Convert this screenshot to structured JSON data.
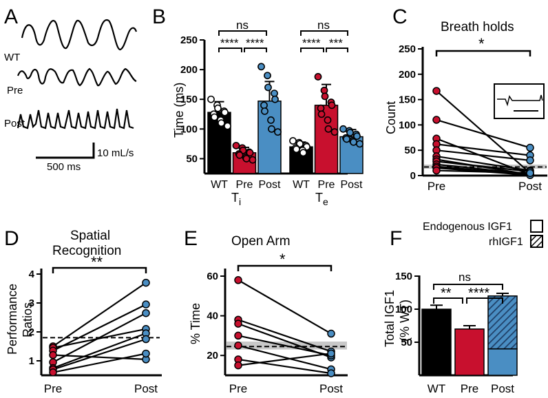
{
  "colors": {
    "wt": "#000000",
    "pre": "#c8102e",
    "post": "#4a8ec3",
    "band": "#c8c8c8",
    "error": "#000000"
  },
  "panelA": {
    "letter": "A",
    "trace_labels": [
      "WT",
      "Pre",
      "Post"
    ],
    "scale_time": "500 ms",
    "scale_flow": "10 mL/s"
  },
  "panelB": {
    "letter": "B",
    "sig_ti": [
      "ns",
      "****",
      "****"
    ],
    "sig_te": [
      "ns",
      "****",
      "***"
    ],
    "chart_data": {
      "type": "bar",
      "ylabel": "Time (ms)",
      "ylim": [
        25,
        250
      ],
      "yticks": [
        50,
        100,
        150,
        200,
        250
      ],
      "groups": [
        "Ti",
        "Te"
      ],
      "categories": [
        "WT",
        "Pre",
        "Post"
      ],
      "series": [
        {
          "group": "Ti",
          "values": [
            128,
            60,
            147
          ],
          "errors": [
            18,
            9,
            33
          ],
          "points": [
            [
              150,
              140,
              135,
              130,
              128,
              125,
              120,
              115,
              110,
              105
            ],
            [
              72,
              68,
              64,
              61,
              60,
              58,
              56,
              52,
              50,
              48
            ],
            [
              205,
              190,
              170,
              160,
              150,
              140,
              130,
              115,
              100,
              95
            ]
          ]
        },
        {
          "group": "Te",
          "values": [
            70,
            140,
            87
          ],
          "errors": [
            8,
            35,
            12
          ],
          "points": [
            [
              80,
              77,
              75,
              72,
              70,
              68,
              66,
              64,
              60
            ],
            [
              188,
              165,
              155,
              145,
              140,
              135,
              125,
              115,
              100,
              95
            ],
            [
              100,
              97,
              94,
              91,
              88,
              85,
              83,
              80,
              78,
              75
            ]
          ]
        }
      ]
    }
  },
  "panelC": {
    "letter": "C",
    "sig": "*",
    "chart_data": {
      "type": "line",
      "title": "Breath holds",
      "ylabel": "Count",
      "categories": [
        "Pre",
        "Post"
      ],
      "ylim": [
        0,
        250
      ],
      "yticks": [
        0,
        50,
        100,
        150,
        200,
        250
      ],
      "reference_level": 17,
      "pairs": [
        [
          167,
          5
        ],
        [
          110,
          55
        ],
        [
          73,
          2
        ],
        [
          62,
          40
        ],
        [
          50,
          30
        ],
        [
          38,
          10
        ],
        [
          32,
          2
        ],
        [
          28,
          8
        ],
        [
          22,
          3
        ],
        [
          18,
          2
        ],
        [
          15,
          1
        ],
        [
          10,
          5
        ]
      ]
    }
  },
  "panelD": {
    "letter": "D",
    "sig": "**",
    "chart_data": {
      "type": "line",
      "title": "Spatial\nRecognition",
      "ylabel": "Performance\nRatios",
      "categories": [
        "Pre",
        "Post"
      ],
      "ylim": [
        0.5,
        4
      ],
      "yticks": [
        1,
        2,
        3,
        4
      ],
      "reference_level": 1.8,
      "pairs": [
        [
          1.5,
          3.7
        ],
        [
          1.45,
          2.1
        ],
        [
          1.35,
          2.95
        ],
        [
          1.2,
          1.05
        ],
        [
          0.95,
          2.65
        ],
        [
          0.75,
          1.95
        ],
        [
          0.7,
          1.75
        ],
        [
          0.6,
          1.25
        ]
      ]
    }
  },
  "panelE": {
    "letter": "E",
    "sig": "*",
    "chart_data": {
      "type": "line",
      "title": "Open Arm",
      "ylabel": "% Time",
      "categories": [
        "Pre",
        "Post"
      ],
      "ylim": [
        10,
        60
      ],
      "yticks": [
        20,
        40,
        60
      ],
      "reference_level": 24.5,
      "reference_band": [
        23,
        27
      ],
      "pairs": [
        [
          58,
          31
        ],
        [
          38,
          22
        ],
        [
          36,
          19
        ],
        [
          30,
          20
        ],
        [
          25,
          13
        ],
        [
          18,
          11
        ],
        [
          15,
          21
        ]
      ]
    }
  },
  "panelF": {
    "letter": "F",
    "legend": [
      "Endogenous IGF1",
      "rhIGF1"
    ],
    "sig": [
      "ns",
      "**",
      "****"
    ],
    "chart_data": {
      "type": "bar",
      "ylabel": "Total IGF1",
      "ylabel2": "(% WT)",
      "categories": [
        "WT",
        "Pre",
        "Post"
      ],
      "ylim": [
        0,
        150
      ],
      "yticks": [
        50,
        100,
        150
      ],
      "values": [
        100,
        70,
        120
      ],
      "errors": [
        6,
        5,
        4
      ],
      "post_endogenous": 40
    }
  }
}
